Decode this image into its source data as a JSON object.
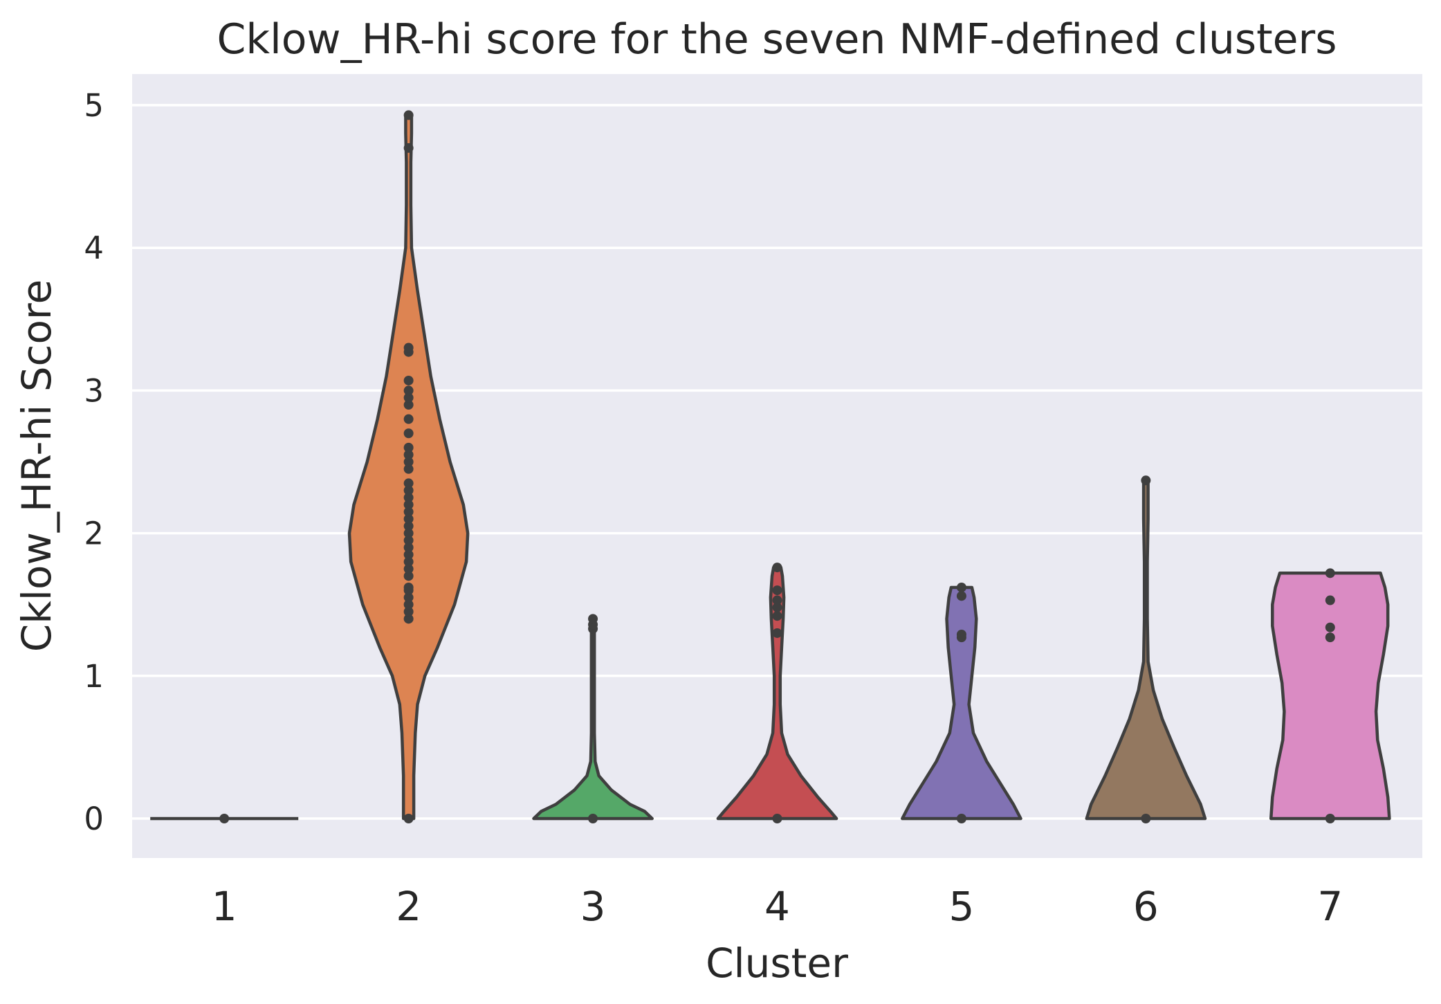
{
  "chart_data": {
    "type": "violin",
    "title": "Cklow_HR-hi score for the seven NMF-defined clusters",
    "xlabel": "Cluster",
    "ylabel": "Cklow_HR-hi Score",
    "ylim": [
      -0.28,
      5.2
    ],
    "yticks": [
      "0",
      "1",
      "2",
      "3",
      "4",
      "5"
    ],
    "grid": true,
    "background": "#eaeaf2",
    "categories": [
      "1",
      "2",
      "3",
      "4",
      "5",
      "6",
      "7"
    ],
    "series": [
      {
        "cluster": "1",
        "color": "#4c72b0",
        "min": 0,
        "max": 0,
        "profile": [
          [
            0,
            1.0
          ]
        ],
        "points": [
          0
        ]
      },
      {
        "cluster": "2",
        "color": "#dd8452",
        "min": 0,
        "max": 4.93,
        "profile": [
          [
            0,
            0.07
          ],
          [
            0.3,
            0.07
          ],
          [
            0.6,
            0.09
          ],
          [
            0.8,
            0.12
          ],
          [
            1.0,
            0.22
          ],
          [
            1.2,
            0.39
          ],
          [
            1.5,
            0.62
          ],
          [
            1.8,
            0.78
          ],
          [
            2.0,
            0.8
          ],
          [
            2.2,
            0.74
          ],
          [
            2.5,
            0.56
          ],
          [
            2.8,
            0.42
          ],
          [
            3.1,
            0.3
          ],
          [
            3.4,
            0.21
          ],
          [
            3.7,
            0.12
          ],
          [
            4.0,
            0.04
          ],
          [
            4.3,
            0.03
          ],
          [
            4.6,
            0.03
          ],
          [
            4.8,
            0.04
          ],
          [
            4.93,
            0.04
          ]
        ],
        "points": [
          0,
          1.4,
          1.45,
          1.5,
          1.55,
          1.6,
          1.62,
          1.7,
          1.75,
          1.8,
          1.85,
          1.9,
          1.95,
          2.0,
          2.05,
          2.1,
          2.15,
          2.2,
          2.25,
          2.3,
          2.35,
          2.45,
          2.5,
          2.55,
          2.6,
          2.7,
          2.8,
          2.9,
          2.95,
          3.0,
          3.07,
          3.27,
          3.3,
          4.7,
          4.93
        ]
      },
      {
        "cluster": "3",
        "color": "#55a868",
        "min": 0,
        "max": 1.4,
        "profile": [
          [
            0,
            0.8
          ],
          [
            0.05,
            0.7
          ],
          [
            0.1,
            0.5
          ],
          [
            0.2,
            0.25
          ],
          [
            0.3,
            0.08
          ],
          [
            0.4,
            0.03
          ],
          [
            0.6,
            0.02
          ],
          [
            1.0,
            0.02
          ],
          [
            1.3,
            0.02
          ],
          [
            1.4,
            0.02
          ]
        ],
        "points": [
          0,
          1.33,
          1.36,
          1.4
        ]
      },
      {
        "cluster": "4",
        "color": "#c44e52",
        "min": 0,
        "max": 1.76,
        "profile": [
          [
            0,
            0.8
          ],
          [
            0.05,
            0.72
          ],
          [
            0.15,
            0.55
          ],
          [
            0.3,
            0.32
          ],
          [
            0.45,
            0.14
          ],
          [
            0.6,
            0.06
          ],
          [
            0.8,
            0.04
          ],
          [
            1.0,
            0.04
          ],
          [
            1.2,
            0.06
          ],
          [
            1.4,
            0.08
          ],
          [
            1.55,
            0.09
          ],
          [
            1.7,
            0.07
          ],
          [
            1.76,
            0.05
          ]
        ],
        "points": [
          0,
          1.3,
          1.42,
          1.48,
          1.53,
          1.6,
          1.76
        ]
      },
      {
        "cluster": "5",
        "color": "#8172b3",
        "min": 0,
        "max": 1.62,
        "profile": [
          [
            0,
            0.8
          ],
          [
            0.1,
            0.7
          ],
          [
            0.25,
            0.52
          ],
          [
            0.4,
            0.34
          ],
          [
            0.6,
            0.16
          ],
          [
            0.8,
            0.1
          ],
          [
            1.0,
            0.14
          ],
          [
            1.2,
            0.18
          ],
          [
            1.4,
            0.2
          ],
          [
            1.55,
            0.17
          ],
          [
            1.62,
            0.14
          ]
        ],
        "points": [
          0,
          1.27,
          1.29,
          1.56,
          1.62
        ]
      },
      {
        "cluster": "6",
        "color": "#937860",
        "min": 0,
        "max": 2.37,
        "profile": [
          [
            0,
            0.8
          ],
          [
            0.1,
            0.74
          ],
          [
            0.3,
            0.55
          ],
          [
            0.5,
            0.38
          ],
          [
            0.7,
            0.22
          ],
          [
            0.9,
            0.1
          ],
          [
            1.1,
            0.03
          ],
          [
            1.4,
            0.02
          ],
          [
            1.8,
            0.02
          ],
          [
            2.1,
            0.03
          ],
          [
            2.3,
            0.03
          ],
          [
            2.37,
            0.03
          ]
        ],
        "points": [
          0,
          2.37
        ]
      },
      {
        "cluster": "7",
        "color": "#da8bc3",
        "min": 0,
        "max": 1.72,
        "profile": [
          [
            0,
            0.8
          ],
          [
            0.15,
            0.78
          ],
          [
            0.35,
            0.72
          ],
          [
            0.55,
            0.64
          ],
          [
            0.75,
            0.62
          ],
          [
            0.95,
            0.65
          ],
          [
            1.15,
            0.72
          ],
          [
            1.35,
            0.78
          ],
          [
            1.5,
            0.78
          ],
          [
            1.62,
            0.74
          ],
          [
            1.72,
            0.68
          ]
        ],
        "points": [
          0,
          1.27,
          1.34,
          1.53,
          1.72
        ]
      }
    ]
  }
}
